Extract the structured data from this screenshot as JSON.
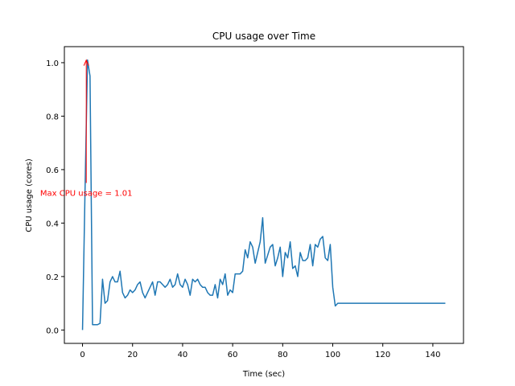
{
  "chart_data": {
    "type": "line",
    "title": "CPU usage over Time",
    "xlabel": "Time (sec)",
    "ylabel": "CPU usage (cores)",
    "xlim": [
      -7.25,
      152.25
    ],
    "ylim": [
      -0.05,
      1.06
    ],
    "xticks": [
      0,
      20,
      40,
      60,
      80,
      100,
      120,
      140
    ],
    "yticks": [
      0.0,
      0.2,
      0.4,
      0.6,
      0.8,
      1.0
    ],
    "xtick_labels": [
      "0",
      "20",
      "40",
      "60",
      "80",
      "100",
      "120",
      "140"
    ],
    "ytick_labels": [
      "0.0",
      "0.2",
      "0.4",
      "0.6",
      "0.8",
      "1.0"
    ],
    "grid": false,
    "series_color": "#1f77b4",
    "annotation_color": "#ff0000",
    "series": [
      {
        "x": [
          0,
          1,
          2,
          3,
          4,
          5,
          6,
          7,
          8,
          9,
          10,
          11,
          12,
          13,
          14,
          15,
          16,
          17,
          18,
          19,
          20,
          21,
          22,
          23,
          24,
          25,
          26,
          27,
          28,
          29,
          30,
          31,
          32,
          33,
          34,
          35,
          36,
          37,
          38,
          39,
          40,
          41,
          42,
          43,
          44,
          45,
          46,
          47,
          48,
          49,
          50,
          51,
          52,
          53,
          54,
          55,
          56,
          57,
          58,
          59,
          60,
          61,
          62,
          63,
          64,
          65,
          66,
          67,
          68,
          69,
          70,
          71,
          72,
          73,
          74,
          75,
          76,
          77,
          78,
          79,
          80,
          81,
          82,
          83,
          84,
          85,
          86,
          87,
          88,
          89,
          90,
          91,
          92,
          93,
          94,
          95,
          96,
          97,
          98,
          99,
          100,
          101,
          102,
          103,
          104,
          105,
          106,
          107,
          108,
          109,
          110,
          111,
          112,
          113,
          114,
          115,
          116,
          117,
          118,
          119,
          120,
          121,
          122,
          123,
          124,
          125,
          126,
          127,
          128,
          129,
          130,
          131,
          132,
          133,
          134,
          135,
          136,
          137,
          138,
          139,
          140,
          141,
          142,
          143,
          144,
          145
        ],
        "values": [
          0.0,
          0.52,
          1.01,
          0.95,
          0.02,
          0.02,
          0.02,
          0.025,
          0.19,
          0.1,
          0.11,
          0.18,
          0.2,
          0.18,
          0.18,
          0.22,
          0.14,
          0.12,
          0.13,
          0.15,
          0.14,
          0.15,
          0.17,
          0.18,
          0.14,
          0.12,
          0.14,
          0.16,
          0.18,
          0.13,
          0.18,
          0.18,
          0.17,
          0.16,
          0.17,
          0.19,
          0.16,
          0.17,
          0.21,
          0.17,
          0.16,
          0.19,
          0.17,
          0.13,
          0.19,
          0.18,
          0.19,
          0.17,
          0.16,
          0.16,
          0.14,
          0.13,
          0.13,
          0.17,
          0.12,
          0.19,
          0.17,
          0.21,
          0.13,
          0.15,
          0.14,
          0.21,
          0.21,
          0.21,
          0.22,
          0.3,
          0.27,
          0.33,
          0.31,
          0.25,
          0.29,
          0.33,
          0.42,
          0.25,
          0.28,
          0.31,
          0.32,
          0.24,
          0.27,
          0.31,
          0.2,
          0.29,
          0.27,
          0.33,
          0.23,
          0.24,
          0.2,
          0.29,
          0.26,
          0.26,
          0.27,
          0.32,
          0.24,
          0.32,
          0.31,
          0.34,
          0.35,
          0.27,
          0.26,
          0.32,
          0.16,
          0.09,
          0.1,
          0.1,
          0.1,
          0.1,
          0.1,
          0.1,
          0.1,
          0.1,
          0.1,
          0.1,
          0.1,
          0.1,
          0.1,
          0.1,
          0.1,
          0.1,
          0.1,
          0.1,
          0.1,
          0.1,
          0.1,
          0.1,
          0.1,
          0.1,
          0.1,
          0.1,
          0.1,
          0.1,
          0.1,
          0.1,
          0.1,
          0.1,
          0.1,
          0.1,
          0.1,
          0.1,
          0.1,
          0.1,
          0.1,
          0.1,
          0.1,
          0.1,
          0.1,
          0.1
        ]
      }
    ],
    "annotation": {
      "text": "Max CPU usage = 1.01",
      "xy": [
        1.5,
        1.01
      ],
      "xytext": [
        1.5,
        0.55
      ]
    }
  }
}
